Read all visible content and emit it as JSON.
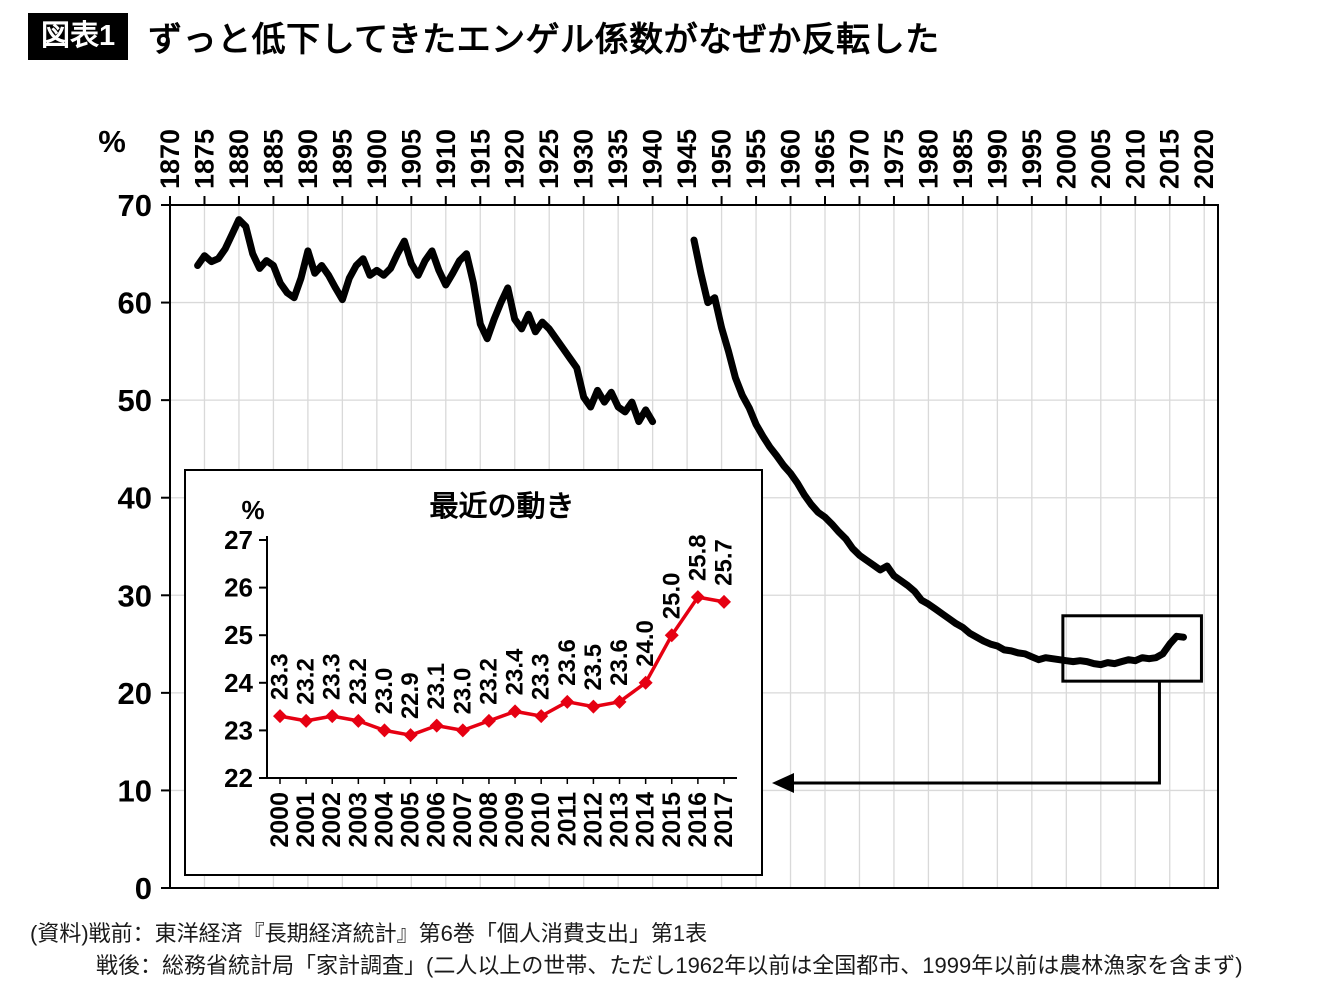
{
  "header": {
    "badge": "図表1",
    "title": "ずっと低下してきたエンゲル係数がなぜか反転した"
  },
  "footer": {
    "line1": "(資料)戦前：東洋経済『長期経済統計』第6巻「個人消費支出」第1表",
    "line2": "戦後：総務省統計局「家計調査」(二人以上の世帯、ただし1962年以前は全国都市、1999年以前は農林漁家を含まず)"
  },
  "chart_data": [
    {
      "id": "main",
      "type": "line",
      "title": "",
      "ylabel": "%",
      "ylim": [
        0,
        70
      ],
      "yticks": [
        0,
        10,
        20,
        30,
        40,
        50,
        60,
        70
      ],
      "xlim": [
        1870,
        2022
      ],
      "xticks": [
        1870,
        1875,
        1880,
        1885,
        1890,
        1895,
        1900,
        1905,
        1910,
        1915,
        1920,
        1925,
        1930,
        1935,
        1940,
        1945,
        1950,
        1955,
        1960,
        1965,
        1970,
        1975,
        1980,
        1985,
        1990,
        1995,
        2000,
        2005,
        2010,
        2015,
        2020
      ],
      "grid": true,
      "grid_color": "#d9d9d9",
      "series": [
        {
          "id": "prewar",
          "name": "戦前",
          "color": "#000000",
          "x_start": 1874,
          "x_end": 1940,
          "values": [
            63.8,
            64.8,
            64.2,
            64.5,
            65.5,
            67.0,
            68.5,
            67.8,
            65.0,
            63.5,
            64.3,
            63.8,
            62.0,
            61.0,
            60.5,
            62.5,
            65.3,
            63.0,
            63.8,
            62.8,
            61.5,
            60.3,
            62.5,
            63.8,
            64.5,
            62.8,
            63.3,
            62.8,
            63.5,
            65.0,
            66.3,
            64.0,
            62.8,
            64.3,
            65.3,
            63.3,
            61.8,
            63.0,
            64.3,
            65.0,
            62.0,
            57.8,
            56.3,
            58.3,
            60.0,
            61.5,
            58.3,
            57.3,
            58.8,
            57.0,
            58.0,
            57.3,
            56.3,
            55.3,
            54.3,
            53.3,
            50.3,
            49.3,
            51.0,
            49.8,
            50.8,
            49.3,
            48.8,
            49.8,
            47.8,
            49.0,
            47.8
          ]
        },
        {
          "id": "postwar",
          "name": "戦後",
          "color": "#000000",
          "x_start": 1946,
          "x_end": 2017,
          "values": [
            66.4,
            63.0,
            60.0,
            60.5,
            57.4,
            55.0,
            52.3,
            50.5,
            49.2,
            47.5,
            46.3,
            45.2,
            44.3,
            43.3,
            42.5,
            41.5,
            40.3,
            39.3,
            38.5,
            38.0,
            37.3,
            36.5,
            35.8,
            34.8,
            34.1,
            33.6,
            33.1,
            32.6,
            33.0,
            32.0,
            31.5,
            31.0,
            30.4,
            29.5,
            29.1,
            28.6,
            28.1,
            27.6,
            27.1,
            26.7,
            26.1,
            25.7,
            25.3,
            25.0,
            24.8,
            24.4,
            24.3,
            24.1,
            24.0,
            23.7,
            23.4,
            23.6,
            23.5,
            23.4,
            23.3,
            23.2,
            23.3,
            23.2,
            23.0,
            22.9,
            23.1,
            23.0,
            23.2,
            23.4,
            23.3,
            23.6,
            23.5,
            23.6,
            24.0,
            25.0,
            25.8,
            25.7
          ]
        }
      ],
      "annotation": {
        "box_x": [
          1999.5,
          2019.6
        ],
        "box_y": [
          21.2,
          27.9
        ],
        "arrow_points_to": "inset"
      }
    },
    {
      "id": "inset",
      "type": "line",
      "title": "最近の動き",
      "ylabel": "%",
      "ylim": [
        22,
        27
      ],
      "yticks": [
        22,
        23,
        24,
        25,
        26,
        27
      ],
      "categories": [
        "2000",
        "2001",
        "2002",
        "2003",
        "2004",
        "2005",
        "2006",
        "2007",
        "2008",
        "2009",
        "2010",
        "2011",
        "2012",
        "2013",
        "2014",
        "2015",
        "2016",
        "2017"
      ],
      "values": [
        23.3,
        23.2,
        23.3,
        23.2,
        23.0,
        22.9,
        23.1,
        23.0,
        23.2,
        23.4,
        23.3,
        23.6,
        23.5,
        23.6,
        24.0,
        25.0,
        25.8,
        25.7
      ],
      "point_labels": [
        "23.3",
        "23.2",
        "23.3",
        "23.2",
        "23.0",
        "22.9",
        "23.1",
        "23.0",
        "23.2",
        "23.4",
        "23.3",
        "23.6",
        "23.5",
        "23.6",
        "24.0",
        "25.0",
        "25.8",
        "25.7"
      ],
      "line_color": "#e60012",
      "marker": "diamond",
      "legend_position": "none"
    }
  ]
}
